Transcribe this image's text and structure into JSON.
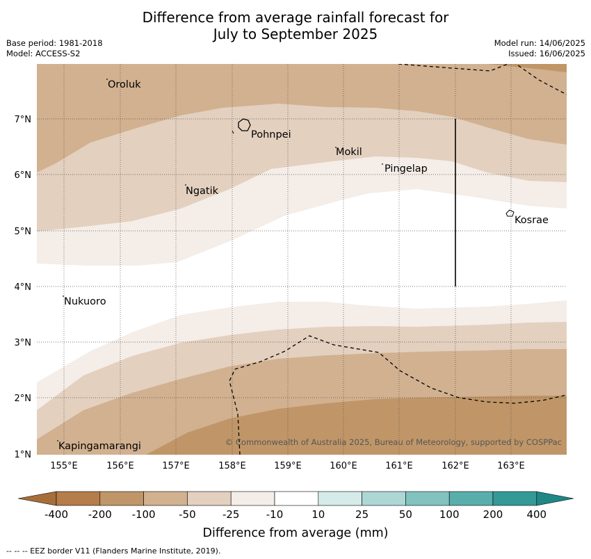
{
  "title_line1": "Difference from average rainfall forecast for",
  "title_line2": "July to September 2025",
  "base_period": "Base period: 1981-2018",
  "model": "Model: ACCESS-S2",
  "model_run": "Model run: 14/06/2025",
  "issued": "Issued: 16/06/2025",
  "x_ticks": [
    "155°E",
    "156°E",
    "157°E",
    "158°E",
    "159°E",
    "160°E",
    "161°E",
    "162°E",
    "163°E"
  ],
  "y_ticks": [
    "7°N",
    "6°N",
    "5°N",
    "4°N",
    "3°N",
    "2°N",
    "1°N"
  ],
  "places": [
    {
      "name": "Oroluk"
    },
    {
      "name": "Pohnpei"
    },
    {
      "name": "Mokil"
    },
    {
      "name": "Pingelap"
    },
    {
      "name": "Ngatik"
    },
    {
      "name": "Kosrae"
    },
    {
      "name": "Nukuoro"
    },
    {
      "name": "Kapingamarangi"
    }
  ],
  "copyright": "© Commonwealth of Australia 2025, Bureau of Meteorology, supported by COSPPac",
  "legend": {
    "labels": [
      "-400",
      "-200",
      "-100",
      "-50",
      "-25",
      "-10",
      "10",
      "25",
      "50",
      "100",
      "200",
      "400"
    ],
    "colors": [
      "#a86e3a",
      "#b57d49",
      "#c09668",
      "#d1b190",
      "#e3d0bf",
      "#f4ede8",
      "#ffffff",
      "#d4ebe9",
      "#acd7d5",
      "#82c2bf",
      "#58aeab",
      "#349a98",
      "#1f8785"
    ],
    "title": "Difference from average (mm)"
  },
  "footer": "--  --  -- EEZ border V11 (Flanders Marine Institute, 2019)."
}
